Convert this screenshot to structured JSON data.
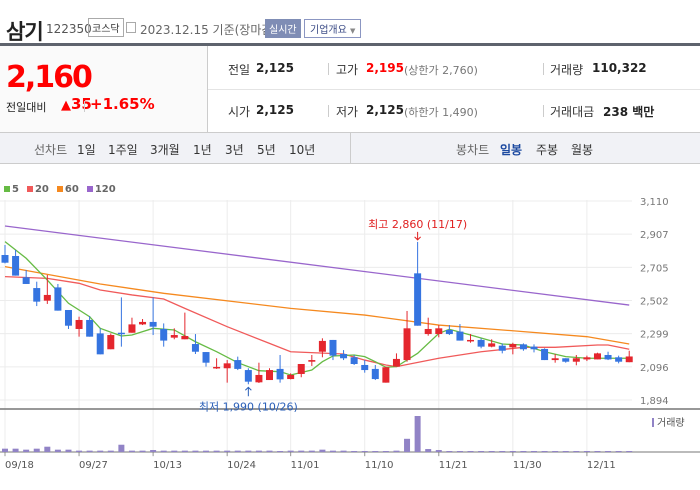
{
  "header": {
    "name": "삼기",
    "code": "122350",
    "market": "코스닥",
    "date": "2023.12.15",
    "basis": "기준(장마감)",
    "realtime": "실시간",
    "overview": "기업개요"
  },
  "quote": {
    "price": "2,160",
    "change_label": "전일대비",
    "change_abs": "35",
    "change_pct": "+1.65%",
    "prev_label": "전일",
    "prev": "2,125",
    "open_label": "시가",
    "open": "2,125",
    "high_label": "고가",
    "high": "2,195",
    "upper_limit": "(상한가 2,760)",
    "low_label": "저가",
    "low": "2,125",
    "lower_limit": "(하한가 1,490)",
    "volume_label": "거래량",
    "volume": "110,322",
    "amount_label": "거래대금",
    "amount": "238 백만"
  },
  "tabs": {
    "line_label": "선차트",
    "line": [
      "1일",
      "1주일",
      "3개월",
      "1년",
      "3년",
      "5년",
      "10년"
    ],
    "candle_label": "봉차트",
    "candle": [
      "일봉",
      "주봉",
      "월봉"
    ],
    "candle_active": "일봉"
  },
  "colors": {
    "up": "#e4262d",
    "down": "#3574e0",
    "price_up": "#ff0000",
    "active_tab": "#1d4aa0",
    "volume": "#9183c6"
  },
  "chart_data": {
    "type": "candlestick",
    "legend": [
      {
        "name": "5",
        "color": "#66bb44"
      },
      {
        "name": "20",
        "color": "#f05a5a"
      },
      {
        "name": "60",
        "color": "#f5891f"
      },
      {
        "name": "120",
        "color": "#9966cc"
      }
    ],
    "yticks": [
      "3,110",
      "2,907",
      "2,705",
      "2,502",
      "2,299",
      "2,096",
      "1,894"
    ],
    "ylim": [
      1894,
      3110
    ],
    "xticks": [
      {
        "label": "09/18",
        "i": 0
      },
      {
        "label": "09/27",
        "i": 7
      },
      {
        "label": "10/13",
        "i": 14
      },
      {
        "label": "10/24",
        "i": 21
      },
      {
        "label": "11/01",
        "i": 27
      },
      {
        "label": "11/10",
        "i": 34
      },
      {
        "label": "11/21",
        "i": 41
      },
      {
        "label": "11/30",
        "i": 48
      },
      {
        "label": "12/11",
        "i": 55
      }
    ],
    "ohlc": [
      [
        2780,
        2841,
        2729,
        2733
      ],
      [
        2774,
        2811,
        2654,
        2654
      ],
      [
        2644,
        2688,
        2603,
        2603
      ],
      [
        2578,
        2617,
        2468,
        2495
      ],
      [
        2501,
        2658,
        2481,
        2536
      ],
      [
        2582,
        2603,
        2440,
        2440
      ],
      [
        2444,
        2444,
        2328,
        2348
      ],
      [
        2328,
        2403,
        2281,
        2383
      ],
      [
        2383,
        2407,
        2281,
        2281
      ],
      [
        2301,
        2332,
        2173,
        2173
      ],
      [
        2204,
        2301,
        2204,
        2291
      ],
      [
        2305,
        2521,
        2220,
        2297
      ],
      [
        2305,
        2397,
        2305,
        2356
      ],
      [
        2356,
        2389,
        2352,
        2371
      ],
      [
        2371,
        2521,
        2291,
        2342
      ],
      [
        2328,
        2362,
        2220,
        2257
      ],
      [
        2275,
        2332,
        2265,
        2291
      ],
      [
        2265,
        2428,
        2265,
        2285
      ],
      [
        2236,
        2297,
        2175,
        2189
      ],
      [
        2187,
        2187,
        2098,
        2122
      ],
      [
        2088,
        2149,
        2084,
        2096
      ],
      [
        2088,
        2138,
        2000,
        2118
      ],
      [
        2138,
        2159,
        2077,
        2084
      ],
      [
        2077,
        2088,
        1990,
        2006
      ],
      [
        2002,
        2122,
        1998,
        2047
      ],
      [
        2016,
        2088,
        2016,
        2077
      ],
      [
        2084,
        2169,
        2000,
        2020
      ],
      [
        2022,
        2057,
        2020,
        2047
      ],
      [
        2053,
        2114,
        2033,
        2114
      ],
      [
        2128,
        2169,
        2102,
        2138
      ],
      [
        2189,
        2271,
        2155,
        2255
      ],
      [
        2261,
        2261,
        2138,
        2165
      ],
      [
        2175,
        2199,
        2138,
        2149
      ],
      [
        2155,
        2169,
        2108,
        2114
      ],
      [
        2108,
        2138,
        2061,
        2077
      ],
      [
        2084,
        2108,
        2016,
        2022
      ],
      [
        2000,
        2098,
        2000,
        2094
      ],
      [
        2098,
        2179,
        2098,
        2145
      ],
      [
        2138,
        2438,
        2128,
        2332
      ],
      [
        2668,
        2860,
        2348,
        2348
      ],
      [
        2297,
        2397,
        2287,
        2328
      ],
      [
        2297,
        2352,
        2277,
        2332
      ],
      [
        2322,
        2352,
        2291,
        2297
      ],
      [
        2312,
        2358,
        2257,
        2257
      ],
      [
        2255,
        2297,
        2244,
        2261
      ],
      [
        2261,
        2271,
        2210,
        2220
      ],
      [
        2220,
        2265,
        2216,
        2240
      ],
      [
        2226,
        2240,
        2179,
        2195
      ],
      [
        2216,
        2244,
        2173,
        2236
      ],
      [
        2234,
        2240,
        2195,
        2204
      ],
      [
        2220,
        2234,
        2185,
        2204
      ],
      [
        2206,
        2210,
        2138,
        2138
      ],
      [
        2138,
        2175,
        2122,
        2149
      ],
      [
        2149,
        2149,
        2122,
        2128
      ],
      [
        2128,
        2169,
        2106,
        2149
      ],
      [
        2142,
        2165,
        2132,
        2155
      ],
      [
        2142,
        2183,
        2142,
        2179
      ],
      [
        2169,
        2189,
        2138,
        2142
      ],
      [
        2155,
        2165,
        2118,
        2128
      ],
      [
        2125,
        2195,
        2125,
        2160
      ]
    ],
    "volume": [
      370000,
      370000,
      260000,
      370000,
      590000,
      260000,
      260000,
      150000,
      150000,
      150000,
      150000,
      810000,
      150000,
      150000,
      220000,
      150000,
      150000,
      150000,
      150000,
      150000,
      150000,
      150000,
      150000,
      150000,
      150000,
      150000,
      110000,
      150000,
      150000,
      150000,
      260000,
      150000,
      150000,
      110000,
      110000,
      110000,
      110000,
      150000,
      1470000,
      4010000,
      330000,
      220000,
      110000,
      110000,
      110000,
      110000,
      110000,
      110000,
      110000,
      110000,
      110000,
      110000,
      110000,
      110000,
      110000,
      110000,
      110000,
      110000,
      110000,
      110322
    ],
    "ma": {
      "5": [
        [
          0,
          2862
        ],
        [
          2,
          2760
        ],
        [
          4,
          2627
        ],
        [
          6,
          2485
        ],
        [
          8,
          2403
        ],
        [
          9,
          2332
        ],
        [
          11,
          2285
        ],
        [
          12,
          2291
        ],
        [
          14,
          2332
        ],
        [
          16,
          2322
        ],
        [
          18,
          2250
        ],
        [
          20,
          2189
        ],
        [
          22,
          2122
        ],
        [
          24,
          2073
        ],
        [
          26,
          2067
        ],
        [
          27,
          2047
        ],
        [
          29,
          2077
        ],
        [
          30,
          2128
        ],
        [
          31,
          2163
        ],
        [
          33,
          2169
        ],
        [
          34,
          2159
        ],
        [
          35,
          2128
        ],
        [
          36,
          2094
        ],
        [
          37,
          2098
        ],
        [
          39,
          2179
        ],
        [
          41,
          2301
        ],
        [
          42,
          2326
        ],
        [
          44,
          2291
        ],
        [
          47,
          2236
        ],
        [
          49,
          2230
        ],
        [
          51,
          2189
        ],
        [
          53,
          2159
        ],
        [
          55,
          2149
        ],
        [
          57,
          2149
        ],
        [
          59,
          2149
        ]
      ],
      "20": [
        [
          0,
          2648
        ],
        [
          4,
          2637
        ],
        [
          7,
          2607
        ],
        [
          9,
          2566
        ],
        [
          12,
          2536
        ],
        [
          15,
          2511
        ],
        [
          17,
          2454
        ],
        [
          21,
          2342
        ],
        [
          25,
          2240
        ],
        [
          27,
          2189
        ],
        [
          32,
          2175
        ],
        [
          34,
          2138
        ],
        [
          36,
          2108
        ],
        [
          37,
          2098
        ],
        [
          41,
          2149
        ],
        [
          45,
          2189
        ],
        [
          49,
          2216
        ],
        [
          52,
          2216
        ],
        [
          56,
          2230
        ],
        [
          57,
          2230
        ],
        [
          59,
          2204
        ]
      ],
      "60": [
        [
          0,
          2709
        ],
        [
          9,
          2603
        ],
        [
          15,
          2546
        ],
        [
          27,
          2454
        ],
        [
          34,
          2413
        ],
        [
          41,
          2352
        ],
        [
          49,
          2312
        ],
        [
          55,
          2281
        ],
        [
          59,
          2236
        ]
      ],
      "120": [
        [
          0,
          2957
        ],
        [
          59,
          2474
        ]
      ]
    },
    "annotations": {
      "high": "최고 2,860 (11/17)",
      "low": "최저 1,990 (10/26)"
    },
    "volume_label": "거래량"
  }
}
